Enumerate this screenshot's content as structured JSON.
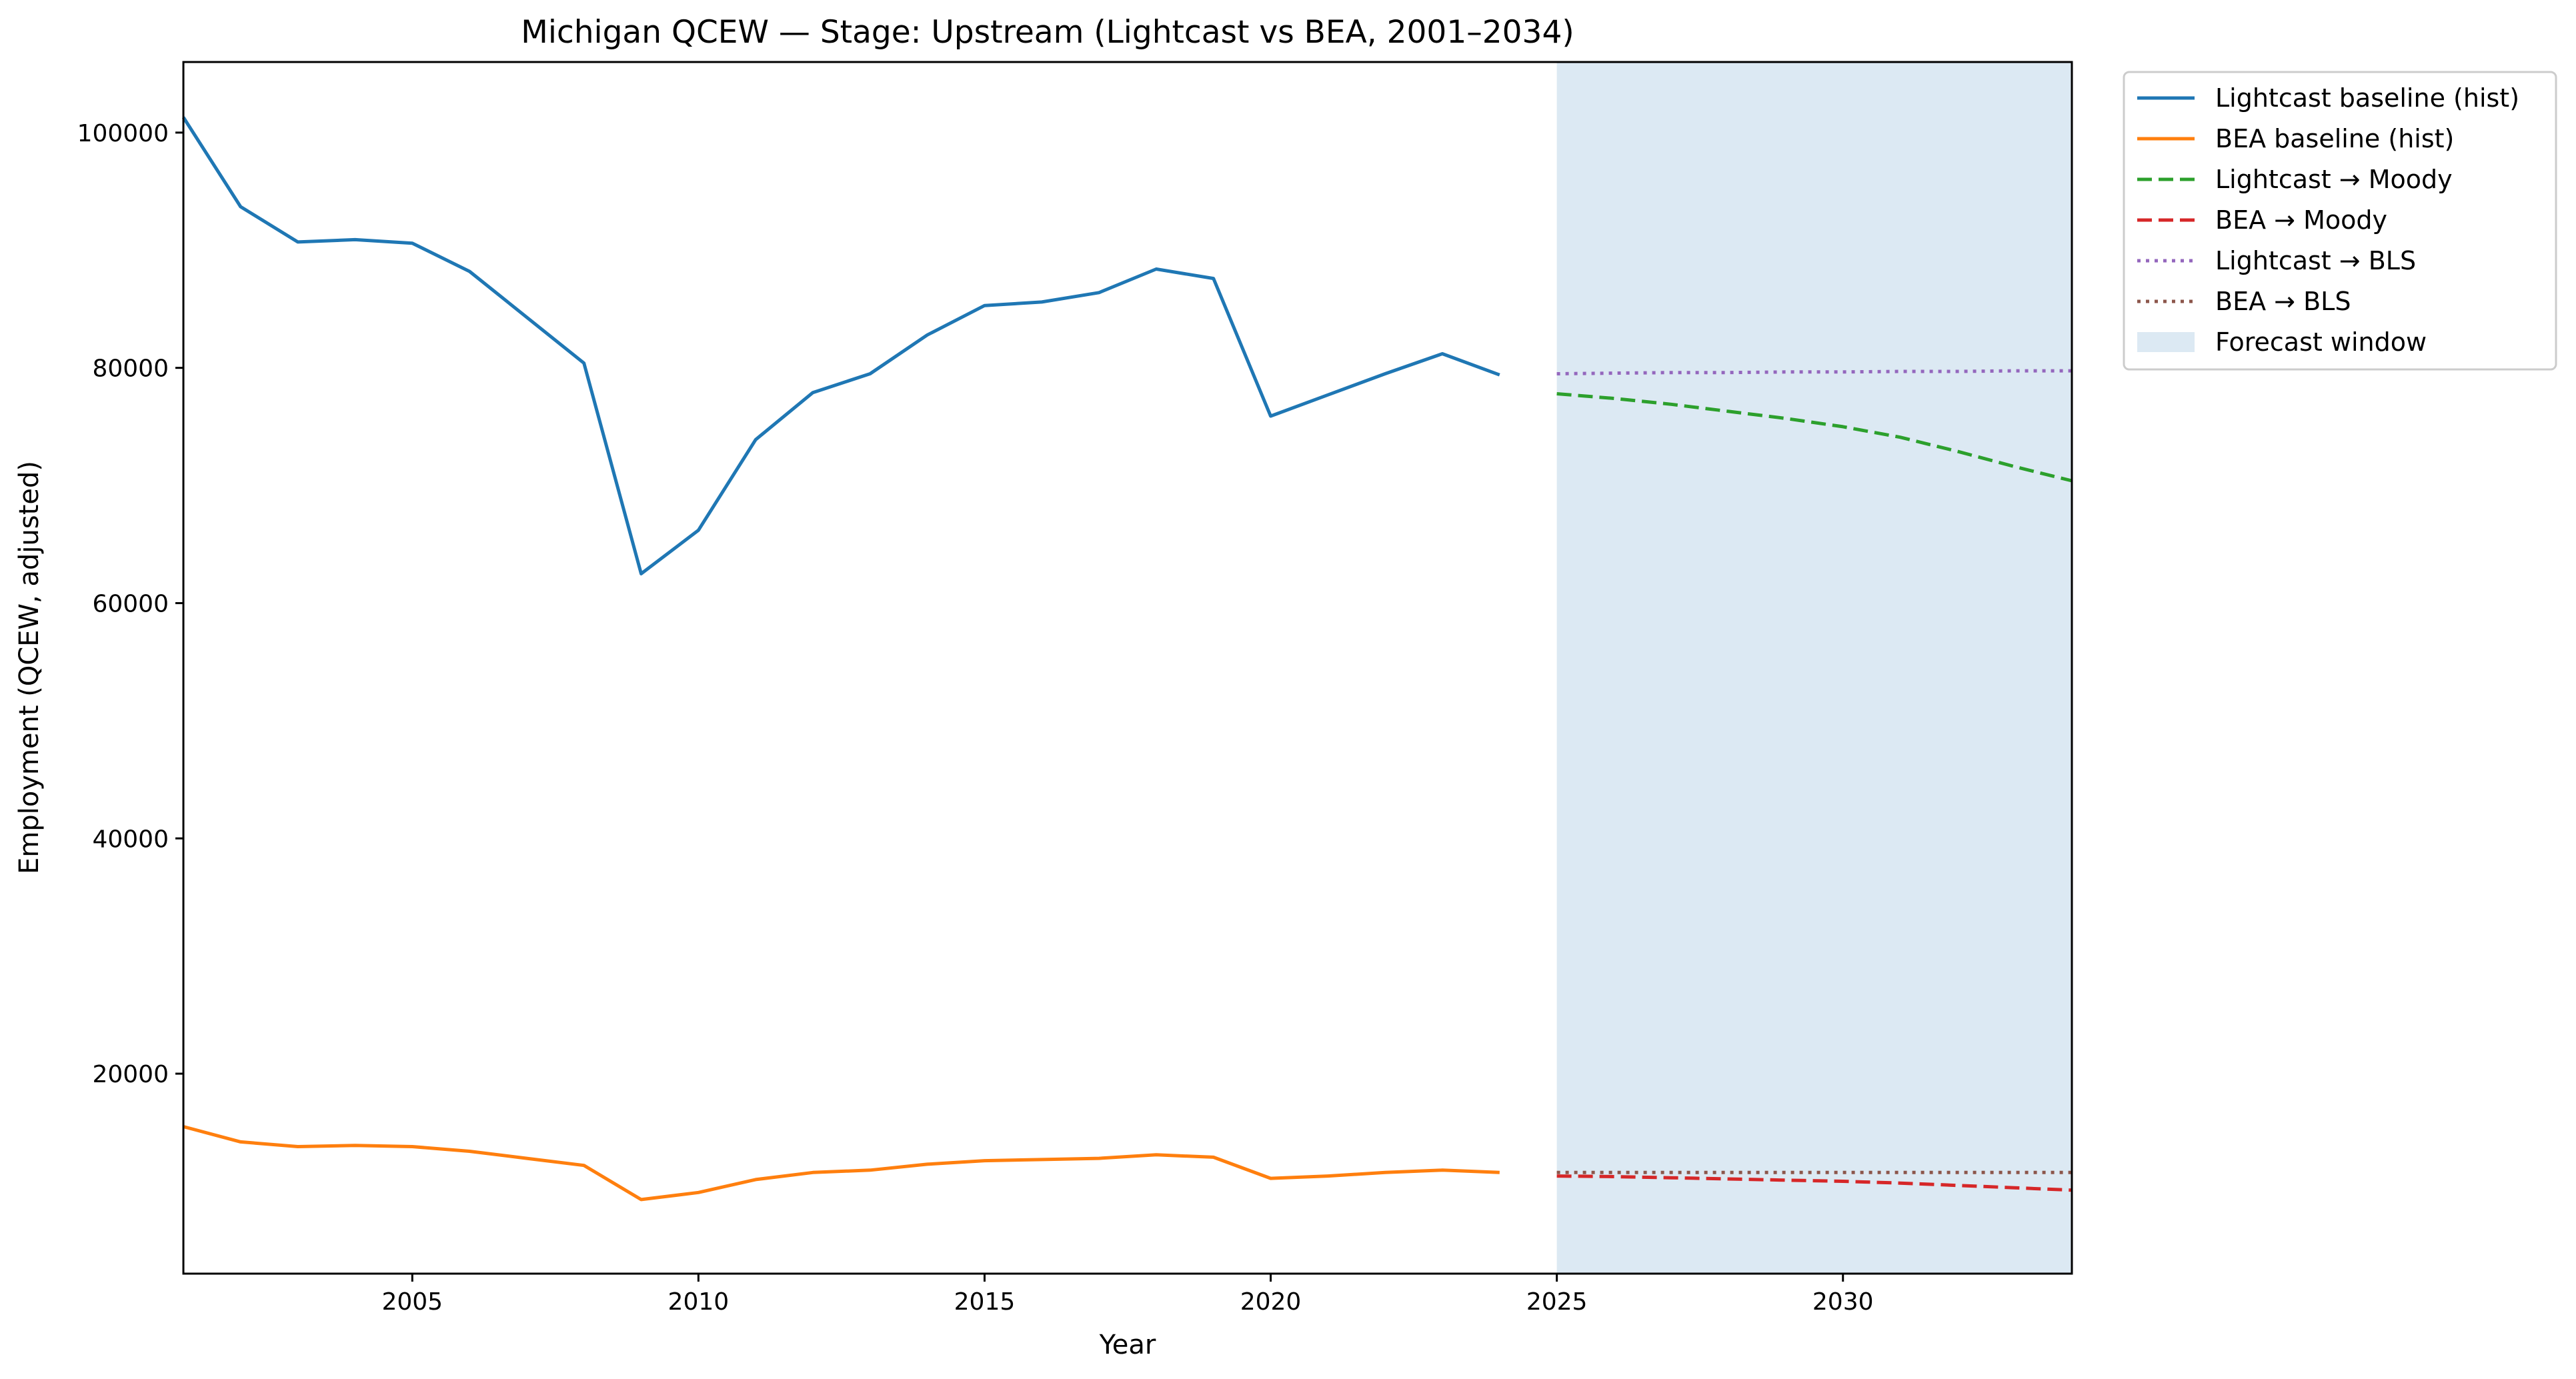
{
  "chart_data": {
    "type": "line",
    "title": "Michigan QCEW — Stage: Upstream (Lightcast vs BEA, 2001–2034)",
    "xlabel": "Year",
    "ylabel": "Employment (QCEW, adjusted)",
    "xlim": [
      2001,
      2034
    ],
    "ylim": [
      3000,
      106000
    ],
    "x_ticks": [
      2005,
      2010,
      2015,
      2020,
      2025,
      2030
    ],
    "y_ticks": [
      20000,
      40000,
      60000,
      80000,
      100000
    ],
    "grid": false,
    "legend_position": "outside-right-top",
    "forecast_window": {
      "label": "Forecast window",
      "x_range": [
        2025,
        2034
      ],
      "color": "#dce9f3"
    },
    "series": [
      {
        "name": "Lightcast baseline (hist)",
        "color": "#1f77b4",
        "style": "solid",
        "x": [
          2001,
          2002,
          2003,
          2004,
          2005,
          2006,
          2007,
          2008,
          2009,
          2010,
          2011,
          2012,
          2013,
          2014,
          2015,
          2016,
          2017,
          2018,
          2019,
          2020,
          2021,
          2022,
          2023,
          2024
        ],
        "values": [
          101300,
          93700,
          90700,
          90900,
          90600,
          88200,
          84300,
          80400,
          62500,
          66200,
          73900,
          77900,
          79500,
          82800,
          85300,
          85600,
          86400,
          88400,
          87600,
          75900,
          77700,
          79500,
          81200,
          79400
        ]
      },
      {
        "name": "BEA baseline (hist)",
        "color": "#ff7f0e",
        "style": "solid",
        "x": [
          2001,
          2002,
          2003,
          2004,
          2005,
          2006,
          2007,
          2008,
          2009,
          2010,
          2011,
          2012,
          2013,
          2014,
          2015,
          2016,
          2017,
          2018,
          2019,
          2020,
          2021,
          2022,
          2023,
          2024
        ],
        "values": [
          15500,
          14200,
          13800,
          13900,
          13800,
          13400,
          12800,
          12200,
          9300,
          9900,
          11000,
          11600,
          11800,
          12300,
          12600,
          12700,
          12800,
          13100,
          12900,
          11100,
          11300,
          11600,
          11800,
          11600
        ]
      },
      {
        "name": "Lightcast → Moody",
        "color": "#2ca02c",
        "style": "dashed",
        "x": [
          2025,
          2026,
          2027,
          2028,
          2029,
          2030,
          2031,
          2032,
          2033,
          2034
        ],
        "values": [
          77800,
          77400,
          76900,
          76300,
          75700,
          75000,
          74100,
          72900,
          71600,
          70400
        ]
      },
      {
        "name": "BEA → Moody",
        "color": "#d62728",
        "style": "dashed",
        "x": [
          2025,
          2026,
          2027,
          2028,
          2029,
          2030,
          2031,
          2032,
          2033,
          2034
        ],
        "values": [
          11300,
          11250,
          11150,
          11050,
          10950,
          10850,
          10700,
          10500,
          10300,
          10100
        ]
      },
      {
        "name": "Lightcast → BLS",
        "color": "#9467bd",
        "style": "dotted",
        "x": [
          2025,
          2026,
          2027,
          2028,
          2029,
          2030,
          2031,
          2032,
          2033,
          2034
        ],
        "values": [
          79500,
          79550,
          79600,
          79600,
          79650,
          79650,
          79700,
          79700,
          79750,
          79750
        ]
      },
      {
        "name": "BEA → BLS",
        "color": "#8c564b",
        "style": "dotted",
        "x": [
          2025,
          2026,
          2027,
          2028,
          2029,
          2030,
          2031,
          2032,
          2033,
          2034
        ],
        "values": [
          11600,
          11600,
          11600,
          11600,
          11600,
          11600,
          11600,
          11600,
          11600,
          11600
        ]
      }
    ]
  }
}
